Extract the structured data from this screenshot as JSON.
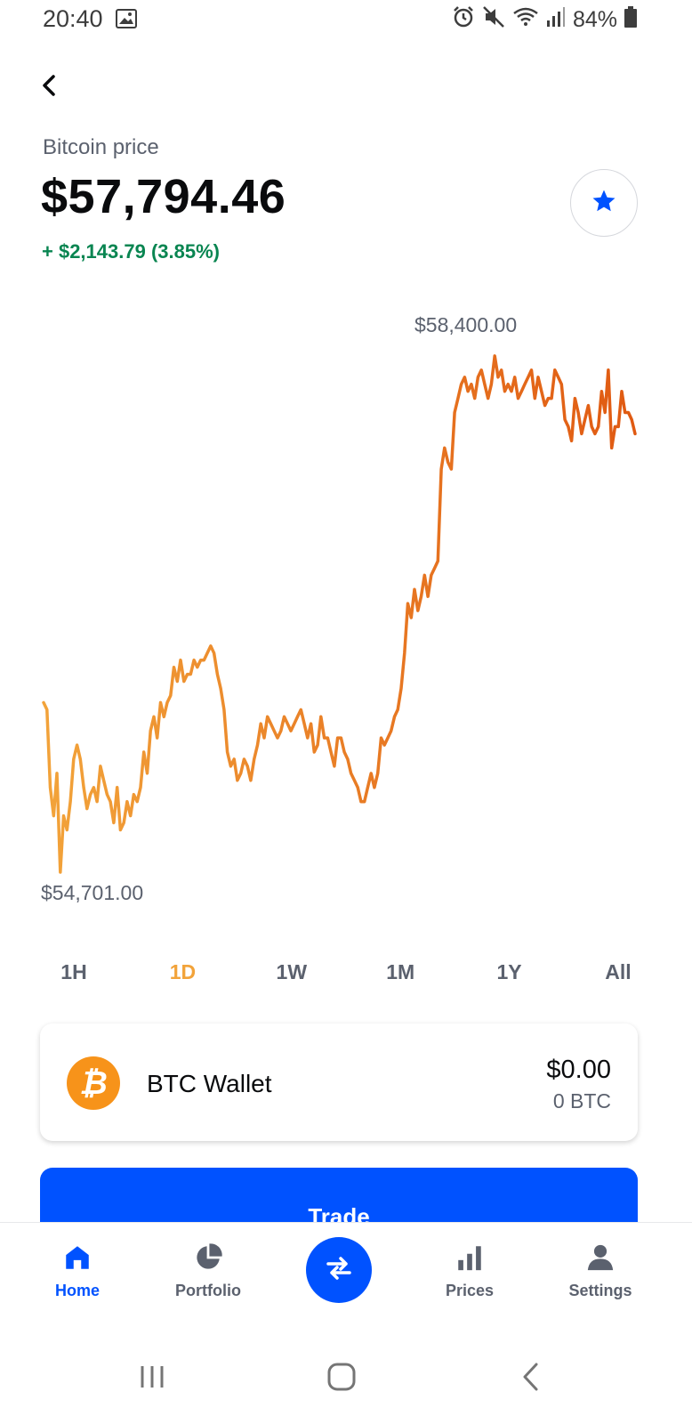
{
  "status_bar": {
    "time": "20:40",
    "battery": "84%",
    "icons": [
      "image-icon",
      "alarm-icon",
      "mute-icon",
      "wifi-icon",
      "signal-icon",
      "battery-icon"
    ]
  },
  "header": {
    "back_icon": "chevron-left-icon",
    "label": "Bitcoin price",
    "price": "$57,794.46",
    "change": "+ $2,143.79 (3.85%)",
    "favorite_icon": "star-icon"
  },
  "colors": {
    "accent": "#0052ff",
    "positive": "#098551",
    "line_start": "#f2a33a",
    "line_end": "#e05a12",
    "tab_active": "#f2a33a",
    "btc": "#f7931a"
  },
  "chart_data": {
    "type": "line",
    "high_label": "$58,400.00",
    "low_label": "$54,701.00",
    "ylim": [
      54701,
      58400
    ],
    "y": [
      55900,
      55850,
      55300,
      55100,
      55400,
      54701,
      55100,
      55000,
      55200,
      55500,
      55600,
      55500,
      55300,
      55150,
      55250,
      55300,
      55200,
      55450,
      55350,
      55250,
      55200,
      55050,
      55300,
      55000,
      55050,
      55200,
      55100,
      55250,
      55200,
      55300,
      55550,
      55400,
      55700,
      55800,
      55650,
      55900,
      55800,
      55900,
      55950,
      56150,
      56050,
      56200,
      56050,
      56100,
      56100,
      56200,
      56150,
      56200,
      56200,
      56250,
      56300,
      56250,
      56100,
      56000,
      55850,
      55550,
      55450,
      55500,
      55350,
      55400,
      55500,
      55450,
      55350,
      55500,
      55600,
      55750,
      55650,
      55800,
      55750,
      55700,
      55650,
      55700,
      55800,
      55750,
      55700,
      55750,
      55800,
      55850,
      55750,
      55650,
      55750,
      55550,
      55600,
      55800,
      55650,
      55650,
      55550,
      55450,
      55650,
      55650,
      55550,
      55500,
      55400,
      55350,
      55300,
      55200,
      55200,
      55300,
      55400,
      55300,
      55400,
      55650,
      55600,
      55650,
      55700,
      55800,
      55850,
      56000,
      56250,
      56600,
      56500,
      56700,
      56550,
      56650,
      56800,
      56650,
      56800,
      56850,
      56900,
      57550,
      57700,
      57600,
      57550,
      57950,
      58050,
      58150,
      58200,
      58100,
      58150,
      58050,
      58200,
      58250,
      58150,
      58050,
      58150,
      58350,
      58200,
      58250,
      58100,
      58150,
      58100,
      58200,
      58050,
      58100,
      58150,
      58200,
      58250,
      58050,
      58200,
      58100,
      58000,
      58050,
      58050,
      58250,
      58200,
      58150,
      57900,
      57850,
      57750,
      58050,
      57950,
      57800,
      57900,
      58000,
      57850,
      57800,
      57850,
      58100,
      57950,
      58250,
      57700,
      57850,
      57850,
      58100,
      57950,
      57950,
      57900,
      57800
    ]
  },
  "timeframes": {
    "items": [
      "1H",
      "1D",
      "1W",
      "1M",
      "1Y",
      "All"
    ],
    "active": "1D"
  },
  "wallet": {
    "icon": "bitcoin-icon",
    "icon_glyph": "₿",
    "name": "BTC Wallet",
    "usd": "$0.00",
    "btc": "0 BTC"
  },
  "trade": {
    "label": "Trade"
  },
  "bottom_nav": {
    "home": "Home",
    "portfolio": "Portfolio",
    "prices": "Prices",
    "settings": "Settings",
    "swap_icon": "swap-arrows-icon"
  },
  "system_nav": [
    "recents-icon",
    "home-circle-icon",
    "back-icon"
  ]
}
